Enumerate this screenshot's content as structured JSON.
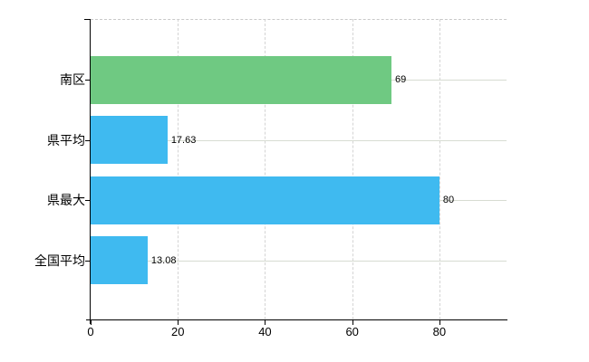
{
  "chart_data": {
    "type": "bar",
    "orientation": "horizontal",
    "title": "",
    "xlabel": "",
    "ylabel": "",
    "categories": [
      "南区",
      "県平均",
      "県最大",
      "全国平均"
    ],
    "values": [
      69,
      17.63,
      80,
      13.08
    ],
    "value_labels": [
      "69",
      "17.63",
      "80",
      "13.08"
    ],
    "bar_colors": [
      "#6fc982",
      "#3fbaf0",
      "#3fbaf0",
      "#3fbaf0"
    ],
    "x_tick_values": [
      0,
      20,
      40,
      60,
      80
    ],
    "x_tick_labels": [
      "0",
      "20",
      "40",
      "60",
      "80"
    ],
    "xlim": [
      0,
      95.4
    ],
    "legend_position": "none",
    "grid": {
      "vertical_gridlines": true,
      "horizontal_category_lines": true,
      "top_border_dashed": true
    },
    "colors": {
      "accent_green": "#6fc982",
      "accent_blue": "#3fbaf0",
      "grid_vertical": "#d4d4d4",
      "grid_horizontal": "#d7dcd2",
      "axis": "#000000",
      "text": "#000000",
      "background": "#ffffff"
    }
  }
}
